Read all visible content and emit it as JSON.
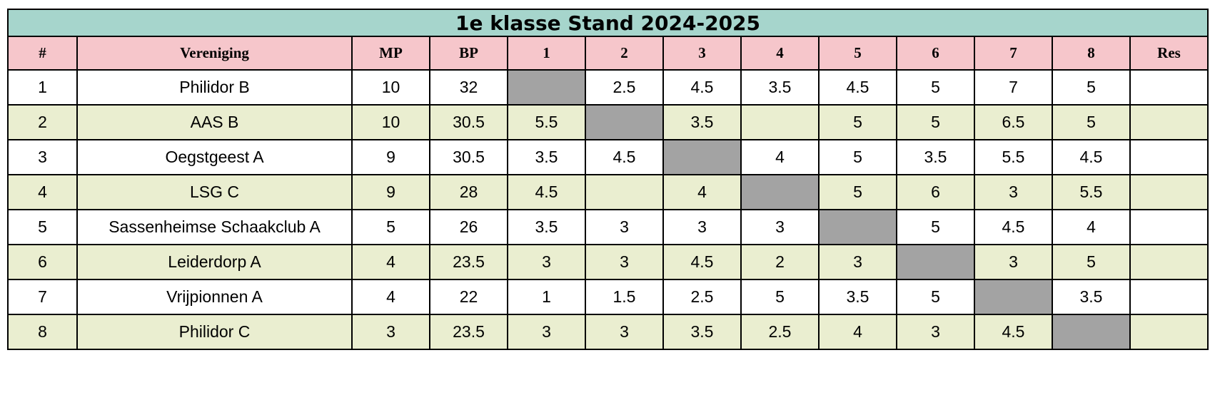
{
  "title": "1e klasse Stand 2024-2025",
  "chart_data": {
    "type": "table",
    "title": "1e klasse Stand 2024-2025",
    "columns": [
      "#",
      "Vereniging",
      "MP",
      "BP",
      "1",
      "2",
      "3",
      "4",
      "5",
      "6",
      "7",
      "8",
      "Res"
    ],
    "rows": [
      [
        "1",
        "Philidor B",
        "10",
        "32",
        null,
        "2.5",
        "4.5",
        "3.5",
        "4.5",
        "5",
        "7",
        "5",
        ""
      ],
      [
        "2",
        "AAS B",
        "10",
        "30.5",
        "5.5",
        null,
        "3.5",
        "",
        "5",
        "5",
        "6.5",
        "5",
        ""
      ],
      [
        "3",
        "Oegstgeest A",
        "9",
        "30.5",
        "3.5",
        "4.5",
        null,
        "4",
        "5",
        "3.5",
        "5.5",
        "4.5",
        ""
      ],
      [
        "4",
        "LSG C",
        "9",
        "28",
        "4.5",
        "",
        "4",
        null,
        "5",
        "6",
        "3",
        "5.5",
        ""
      ],
      [
        "5",
        "Sassenheimse Schaakclub A",
        "5",
        "26",
        "3.5",
        "3",
        "3",
        "3",
        null,
        "5",
        "4.5",
        "4",
        ""
      ],
      [
        "6",
        "Leiderdorp A",
        "4",
        "23.5",
        "3",
        "3",
        "4.5",
        "2",
        "3",
        null,
        "3",
        "5",
        ""
      ],
      [
        "7",
        "Vrijpionnen A",
        "4",
        "22",
        "1",
        "1.5",
        "2.5",
        "5",
        "3.5",
        "5",
        null,
        "3.5",
        ""
      ],
      [
        "8",
        "Philidor C",
        "3",
        "23.5",
        "3",
        "3",
        "3.5",
        "2.5",
        "4",
        "3",
        "4.5",
        null,
        ""
      ]
    ],
    "cell_semantics": "null = gray diagonal self-match cell (visible in pixels); empty string = blank cell",
    "layout": {
      "grid": true,
      "zebra_rows": true,
      "header_position": "top"
    }
  },
  "colors": {
    "title_bg": "#a6d5cc",
    "header_bg": "#f6c6cb",
    "row_alt_bg": "#eaeed0",
    "diag_bg": "#a3a3a3",
    "border": "#000000",
    "text": "#000000"
  }
}
